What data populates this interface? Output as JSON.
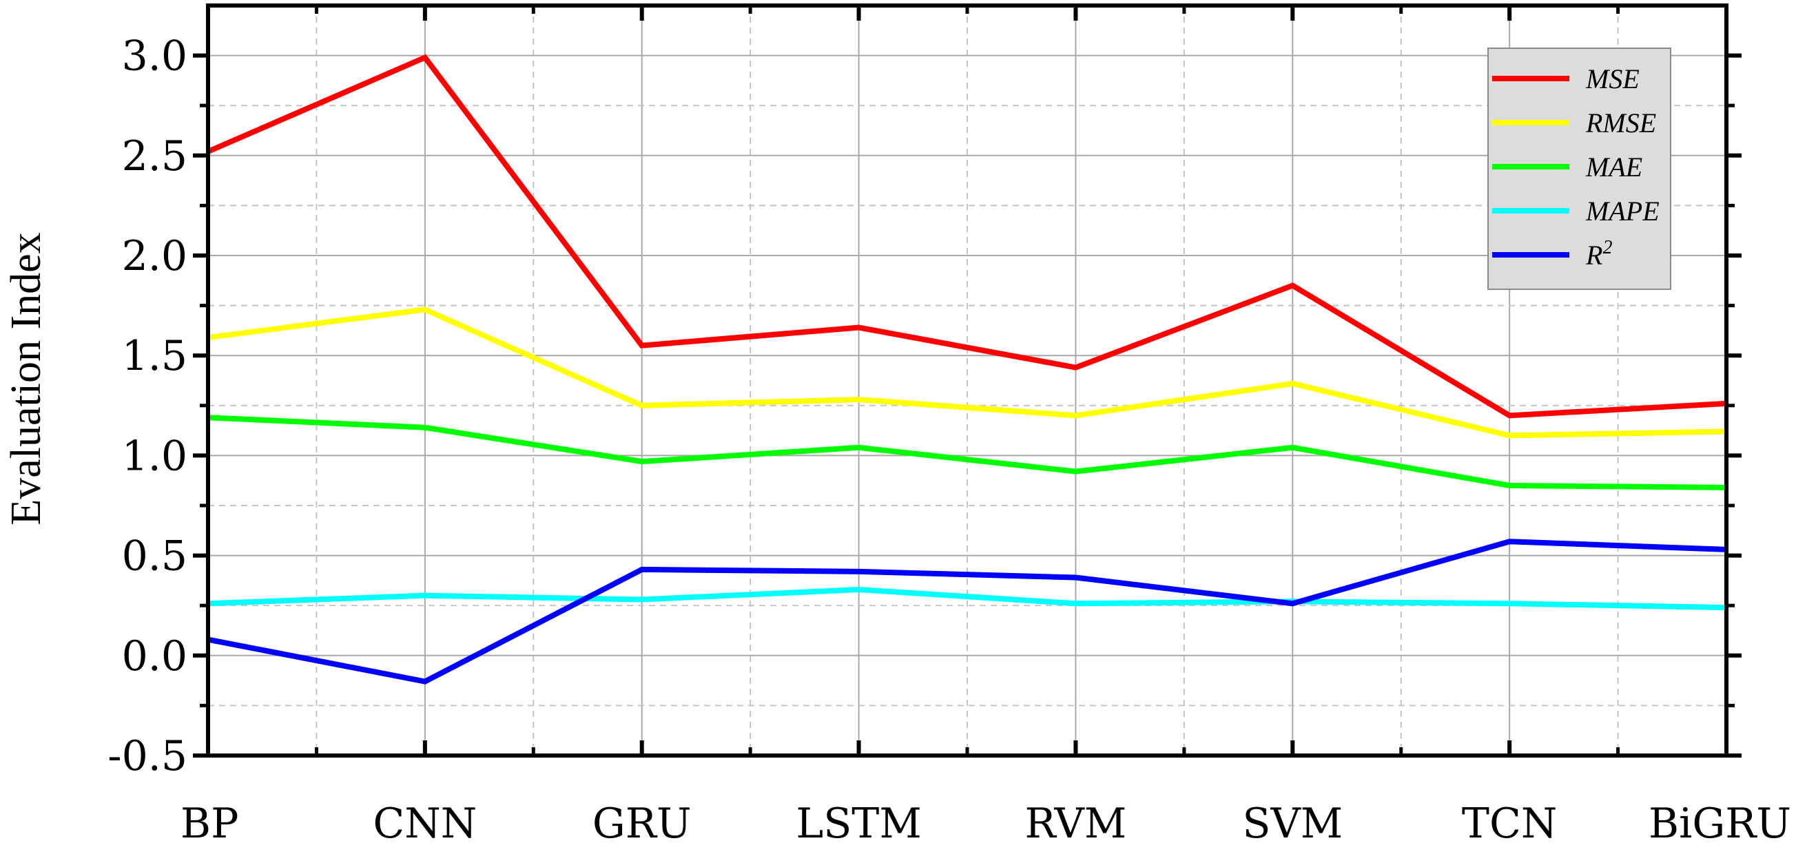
{
  "chart_data": {
    "type": "line",
    "title": "",
    "xlabel": "",
    "ylabel": "Evaluation Index",
    "categories": [
      "BP",
      "CNN",
      "GRU",
      "LSTM",
      "RVM",
      "SVM",
      "TCN",
      "BiGRU"
    ],
    "ylim": [
      -0.5,
      3.25
    ],
    "yticks": [
      -0.5,
      0.0,
      0.5,
      1.0,
      1.5,
      2.0,
      2.5,
      3.0
    ],
    "ytick_labels": [
      "-0.5",
      "0.0",
      "0.5",
      "1.0",
      "1.5",
      "2.0",
      "2.5",
      "3.0"
    ],
    "grid": true,
    "legend_position": "top-right",
    "series": [
      {
        "name": "MSE",
        "color": "#ff0000",
        "values": [
          2.52,
          2.99,
          1.55,
          1.64,
          1.44,
          1.85,
          1.2,
          1.26
        ]
      },
      {
        "name": "RMSE",
        "color": "#ffff00",
        "values": [
          1.59,
          1.73,
          1.25,
          1.28,
          1.2,
          1.36,
          1.1,
          1.12
        ]
      },
      {
        "name": "MAE",
        "color": "#00ff00",
        "values": [
          1.19,
          1.14,
          0.97,
          1.04,
          0.92,
          1.04,
          0.85,
          0.84
        ]
      },
      {
        "name": "MAPE",
        "color": "#00ffff",
        "values": [
          0.26,
          0.3,
          0.28,
          0.33,
          0.26,
          0.27,
          0.26,
          0.24
        ]
      },
      {
        "name": "R",
        "name_superscript": "2",
        "color": "#0000ff",
        "values": [
          0.08,
          -0.13,
          0.43,
          0.42,
          0.39,
          0.26,
          0.57,
          0.53
        ]
      }
    ]
  }
}
